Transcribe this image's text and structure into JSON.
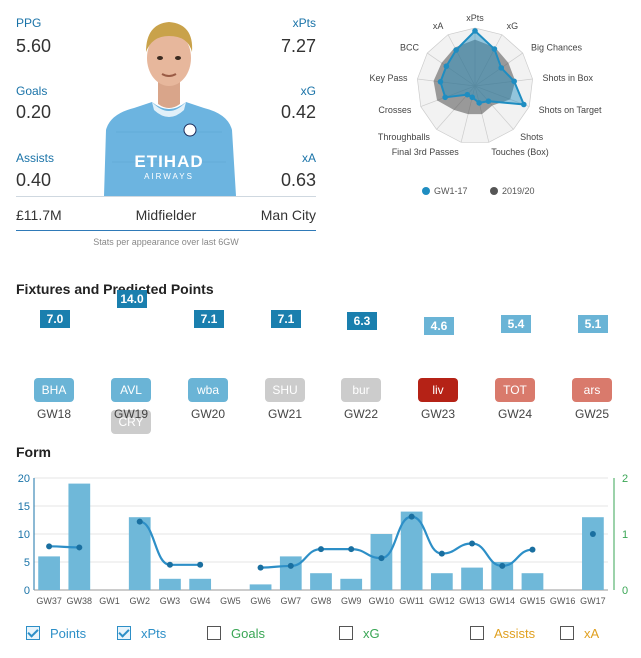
{
  "stats": {
    "ppg": {
      "label": "PPG",
      "value": "5.60"
    },
    "xpts": {
      "label": "xPts",
      "value": "7.27"
    },
    "goals": {
      "label": "Goals",
      "value": "0.20"
    },
    "xg": {
      "label": "xG",
      "value": "0.42"
    },
    "assists": {
      "label": "Assists",
      "value": "0.40"
    },
    "xa": {
      "label": "xA",
      "value": "0.63"
    }
  },
  "player": {
    "price": "£11.7M",
    "position": "Midfielder",
    "team": "Man City",
    "shirt_text": "ETIHAD",
    "shirt_sub": "AIRWAYS",
    "image_icon": "player-photo-icon"
  },
  "footnote": "Stats per appearance over last 6GW",
  "radar": {
    "axes": [
      "xPts",
      "xG",
      "Big Chances",
      "Shots in Box",
      "Shots on Target",
      "Shots",
      "Touches (Box)",
      "Final 3rd Passes",
      "Throughballs",
      "Crosses",
      "Key Pass",
      "BCC",
      "xA"
    ],
    "series": [
      {
        "name": "GW1-17",
        "color": "#1f8dc1",
        "values": [
          0.95,
          0.72,
          0.55,
          0.68,
          0.9,
          0.35,
          0.3,
          0.2,
          0.2,
          0.55,
          0.6,
          0.6,
          0.7
        ]
      },
      {
        "name": "2019/20",
        "color": "#555555",
        "values": [
          0.8,
          0.75,
          0.7,
          0.7,
          0.65,
          0.45,
          0.5,
          0.5,
          0.55,
          0.7,
          0.72,
          0.7,
          0.75
        ]
      }
    ]
  },
  "fixtures": {
    "title": "Fixtures and Predicted Points",
    "items": [
      {
        "gw": "GW18",
        "points": "7.0",
        "opponents": [
          {
            "name": "BHA",
            "color": "#6ab4d6"
          }
        ]
      },
      {
        "gw": "GW19",
        "points": "14.0",
        "opponents": [
          {
            "name": "AVL",
            "color": "#6ab4d6"
          },
          {
            "name": "CRY",
            "color": "#cccccc"
          }
        ]
      },
      {
        "gw": "GW20",
        "points": "7.1",
        "opponents": [
          {
            "name": "wba",
            "color": "#6ab4d6"
          }
        ]
      },
      {
        "gw": "GW21",
        "points": "7.1",
        "opponents": [
          {
            "name": "SHU",
            "color": "#cccccc"
          }
        ]
      },
      {
        "gw": "GW22",
        "points": "6.3",
        "opponents": [
          {
            "name": "bur",
            "color": "#cccccc"
          }
        ]
      },
      {
        "gw": "GW23",
        "points": "4.6",
        "opponents": [
          {
            "name": "liv",
            "color": "#b52216"
          }
        ]
      },
      {
        "gw": "GW24",
        "points": "5.4",
        "opponents": [
          {
            "name": "TOT",
            "color": "#d97a6c"
          }
        ]
      },
      {
        "gw": "GW25",
        "points": "5.1",
        "opponents": [
          {
            "name": "ars",
            "color": "#d97a6c"
          }
        ]
      }
    ]
  },
  "form": {
    "title": "Form",
    "toggles": [
      {
        "label": "Points",
        "checked": true,
        "color": "#2d8fc7"
      },
      {
        "label": "xPts",
        "checked": true,
        "color": "#2d8fc7"
      },
      {
        "label": "Goals",
        "checked": false,
        "color": "#3aa655"
      },
      {
        "label": "xG",
        "checked": false,
        "color": "#3aa655"
      },
      {
        "label": "Assists",
        "checked": false,
        "color": "#e0a020"
      },
      {
        "label": "xA",
        "checked": false,
        "color": "#e0a020"
      }
    ]
  },
  "chart_data": {
    "type": "bar",
    "categories": [
      "GW37",
      "GW38",
      "GW1",
      "GW2",
      "GW3",
      "GW4",
      "GW5",
      "GW6",
      "GW7",
      "GW8",
      "GW9",
      "GW10",
      "GW11",
      "GW12",
      "GW13",
      "GW14",
      "GW15",
      "GW16",
      "GW17"
    ],
    "series": [
      {
        "name": "Points",
        "type": "bar",
        "axis": "left",
        "color": "#6fb8d9",
        "values": [
          6,
          19,
          null,
          13,
          2,
          2,
          null,
          1,
          6,
          3,
          2,
          10,
          14,
          3,
          4,
          5,
          3,
          null,
          13
        ]
      },
      {
        "name": "xPts",
        "type": "line",
        "axis": "right",
        "color": "#2d8fc7",
        "values": [
          0.78,
          0.76,
          null,
          1.22,
          0.45,
          0.45,
          null,
          0.4,
          0.43,
          0.73,
          0.73,
          0.57,
          1.31,
          0.65,
          0.83,
          0.43,
          0.72,
          null,
          1.0
        ]
      }
    ],
    "ylim": [
      0,
      20
    ],
    "yticks": [
      0,
      5,
      10,
      15,
      20
    ],
    "y2lim": [
      0,
      2
    ],
    "y2ticks": [
      0,
      1,
      2
    ],
    "grid": true
  }
}
